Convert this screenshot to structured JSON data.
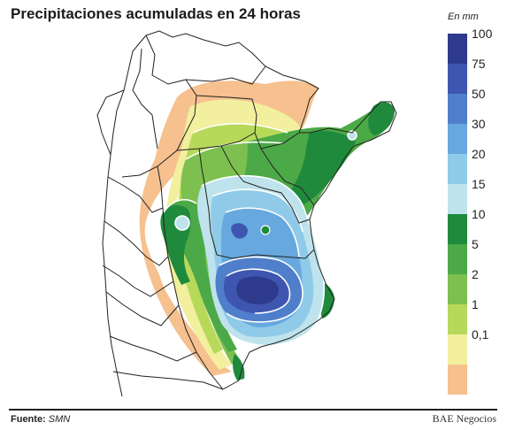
{
  "title": "Precipitaciones acumuladas en 24 horas",
  "legend": {
    "unit": "En mm",
    "classes": [
      {
        "label": "100",
        "color": "#2e3a8c"
      },
      {
        "label": "75",
        "color": "#3f56b0"
      },
      {
        "label": "50",
        "color": "#4f7fcb"
      },
      {
        "label": "30",
        "color": "#67a8de"
      },
      {
        "label": "20",
        "color": "#8fcbe8"
      },
      {
        "label": "15",
        "color": "#bfe3ec"
      },
      {
        "label": "10",
        "color": "#1f8a3c"
      },
      {
        "label": "5",
        "color": "#4ca947"
      },
      {
        "label": "2",
        "color": "#7dc04f"
      },
      {
        "label": "1",
        "color": "#b7d95a"
      },
      {
        "label": "0,1",
        "color": "#f2ef9e"
      },
      {
        "label": "",
        "color": "#f6c08f"
      }
    ]
  },
  "footer": {
    "source_label": "Fuente:",
    "source_value": "SMN",
    "brand": "BAE Negocios"
  }
}
